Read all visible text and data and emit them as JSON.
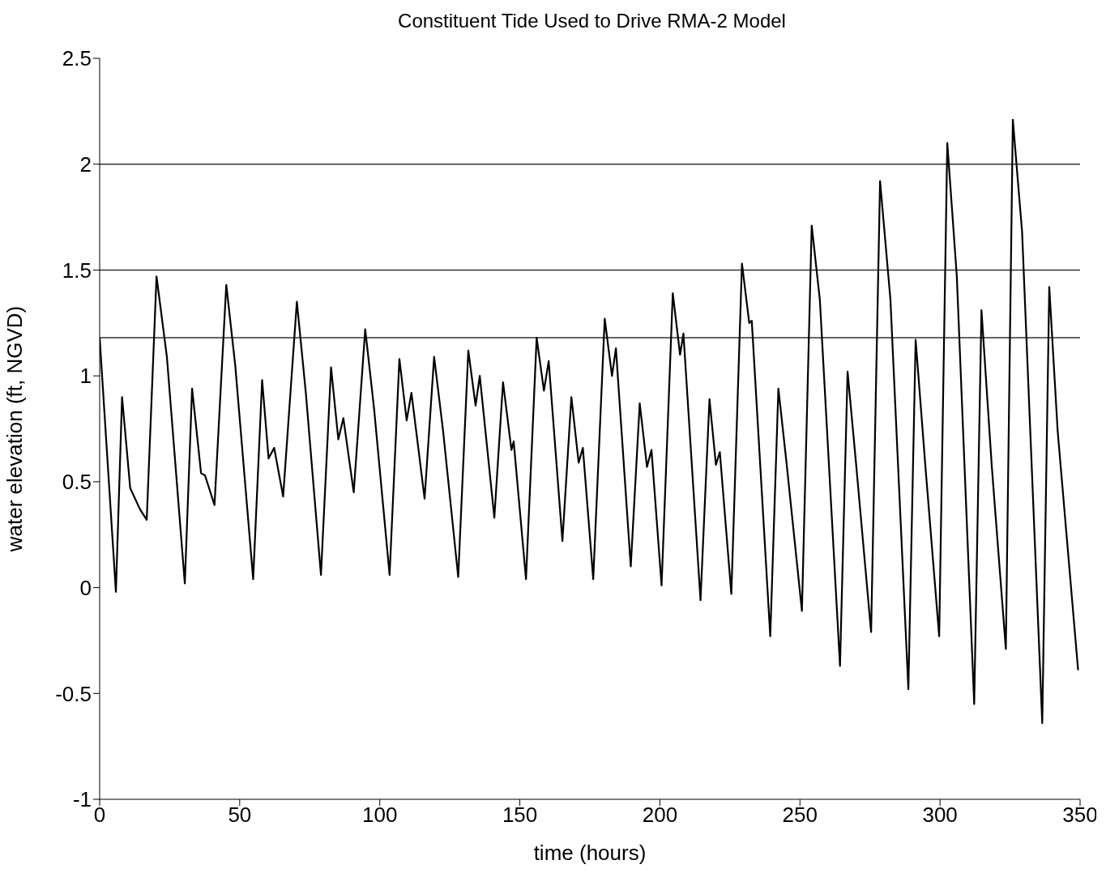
{
  "chart_data": {
    "type": "line",
    "title": "Constituent Tide Used to Drive RMA-2 Model",
    "xlabel": "time (hours)",
    "ylabel": "water elevation (ft, NGVD)",
    "xlim": [
      0,
      350
    ],
    "xticks": [
      0,
      50,
      100,
      150,
      200,
      250,
      300,
      350
    ],
    "ylim": [
      -1,
      2.5
    ],
    "yticks": [
      -1,
      -0.5,
      0,
      0.5,
      1,
      1.5,
      2,
      2.5
    ],
    "grid": false,
    "legend": false,
    "marker": "none",
    "line_style": "solid",
    "x": [
      0,
      5.8,
      8,
      10.9,
      14.4,
      16.8,
      20.3,
      24,
      30.4,
      33,
      36.2,
      37.6,
      41,
      45.2,
      48.4,
      54.8,
      58,
      60.3,
      62.3,
      65.5,
      70.4,
      73.6,
      79,
      82.6,
      85.2,
      87,
      90.7,
      94.8,
      98,
      103.5,
      107,
      109.6,
      111.3,
      116,
      119.4,
      122.6,
      128,
      131.6,
      134.2,
      135.7,
      140.9,
      144,
      147,
      147.8,
      152.2,
      156,
      158.6,
      160.3,
      165.2,
      168.4,
      171,
      172.5,
      176.2,
      180.3,
      182.9,
      184.3,
      189.6,
      192.8,
      195.4,
      197,
      200.6,
      204.6,
      207.2,
      208.4,
      214.5,
      217.7,
      220,
      221.4,
      225.5,
      229.3,
      231.9,
      232.8,
      239.4,
      242.3,
      245.2,
      250.7,
      254.2,
      257.1,
      264.3,
      267,
      270,
      275.4,
      278.6,
      282.3,
      288.7,
      291.3,
      294.8,
      299.7,
      302.6,
      306,
      312.2,
      314.8,
      318.5,
      323.5,
      326,
      329.3,
      336.5,
      339,
      342,
      349.3
    ],
    "series": [
      {
        "color": "#000000",
        "values": [
          1.18,
          -0.02,
          0.9,
          0.47,
          0.37,
          0.32,
          1.47,
          1.09,
          0.02,
          0.94,
          0.54,
          0.53,
          0.39,
          1.43,
          1.05,
          0.04,
          0.98,
          0.61,
          0.66,
          0.43,
          1.35,
          0.92,
          0.06,
          1.04,
          0.7,
          0.8,
          0.45,
          1.22,
          0.84,
          0.06,
          1.08,
          0.79,
          0.92,
          0.42,
          1.09,
          0.74,
          0.05,
          1.12,
          0.86,
          1.0,
          0.33,
          0.97,
          0.65,
          0.69,
          0.04,
          1.18,
          0.93,
          1.07,
          0.22,
          0.9,
          0.59,
          0.66,
          0.04,
          1.27,
          1.0,
          1.13,
          0.1,
          0.87,
          0.57,
          0.65,
          0.01,
          1.39,
          1.1,
          1.2,
          -0.06,
          0.89,
          0.58,
          0.64,
          -0.03,
          1.53,
          1.25,
          1.26,
          -0.23,
          0.94,
          0.59,
          -0.11,
          1.71,
          1.36,
          -0.37,
          1.02,
          0.59,
          -0.21,
          1.92,
          1.36,
          -0.48,
          1.17,
          0.57,
          -0.23,
          2.1,
          1.47,
          -0.55,
          1.31,
          0.57,
          -0.29,
          2.21,
          1.68,
          -0.64,
          1.42,
          0.74,
          -0.39
        ]
      }
    ],
    "ref_lines": [
      {
        "axis": "y",
        "value": 2,
        "label": null,
        "color": "#333333"
      },
      {
        "axis": "y",
        "value": 1.5,
        "label": null,
        "color": "#333333"
      },
      {
        "axis": "y",
        "value": 1.18,
        "label": null,
        "color": "#333333"
      }
    ]
  }
}
